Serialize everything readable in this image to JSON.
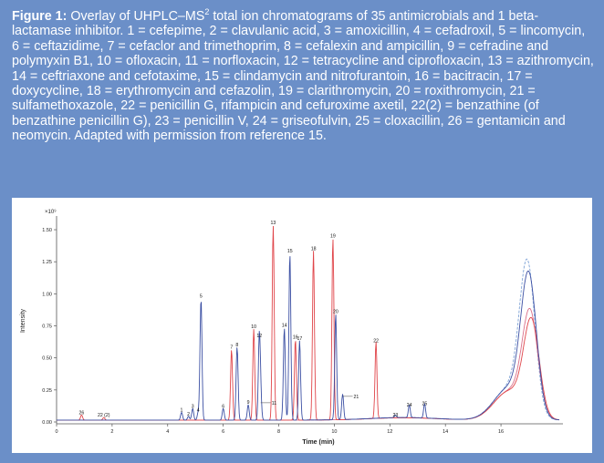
{
  "caption": {
    "label": "Figure 1:",
    "text_before_sup": " Overlay of UHPLC–MS",
    "superscript": "2",
    "text_after_sup": " total ion chromatograms of 35 antimicrobials and 1 beta-lactamase inhibitor. 1 = cefepime, 2 = clavulanic acid, 3 = amoxicillin, 4 = cefadroxil, 5 = lincomycin, 6 = ceftazidime, 7 = cefaclor and trimethoprim, 8 = cefalexin and ampicillin, 9 = cefradine and polymyxin B1, 10 = ofloxacin, 11 = norfloxacin, 12 = tetracycline and ciprofloxacin, 13 = azithromycin, 14 = ceftriaxone and cefotaxime, 15 = clindamycin and nitrofurantoin, 16 = bacitracin, 17 = doxycycline, 18 = erythromycin and cefazolin, 19 = clarithromycin, 20 = roxithromycin, 21 = sulfamethoxazole, 22 = penicillin G, rifampicin and cefuroxime axetil, 22(2) = benzathine (of benzathine penicillin G), 23 = penicillin V, 24 = griseofulvin, 25 = cloxacillin, 26 = gentamicin and neomycin. Adapted with permission from reference 15."
  },
  "colors": {
    "panel_bg": "#6b8fc8",
    "red": "#e0454a",
    "blue": "#3b4fa3",
    "lightblue": "#7fa3d6",
    "pink": "#d9708a"
  },
  "chart_data": {
    "type": "line",
    "xlabel": "Time (min)",
    "ylabel": "Intensity",
    "y_multiplier_label": "×10⁹",
    "xlim": [
      0,
      18.1
    ],
    "ylim": [
      0,
      1.55
    ],
    "x_ticks": [
      "0",
      "2",
      "4",
      "6",
      "8",
      "10",
      "12",
      "14",
      "16"
    ],
    "y_ticks": [
      "0.00",
      "0.25",
      "0.50",
      "0.75",
      "1.00",
      "1.25",
      "1.50"
    ],
    "x_tick_values": [
      0,
      2,
      4,
      6,
      8,
      10,
      12,
      14,
      16
    ],
    "y_tick_values": [
      0,
      0.25,
      0.5,
      0.75,
      1.0,
      1.25,
      1.5
    ],
    "peaks": [
      {
        "label": "26",
        "x": 0.9,
        "y": 0.04,
        "color": "red"
      },
      {
        "label": "22 (2)",
        "x": 1.7,
        "y": 0.02,
        "color": "red"
      },
      {
        "label": "1",
        "x": 4.5,
        "y": 0.06,
        "color": "blue"
      },
      {
        "label": "2",
        "x": 4.75,
        "y": 0.03,
        "color": "blue"
      },
      {
        "label": "3",
        "x": 4.9,
        "y": 0.09,
        "color": "blue"
      },
      {
        "label": "4",
        "x": 5.1,
        "y": 0.06,
        "color": "blue"
      },
      {
        "label": "5",
        "x": 5.2,
        "y": 0.95,
        "color": "blue"
      },
      {
        "label": "6",
        "x": 6.0,
        "y": 0.09,
        "color": "blue"
      },
      {
        "label": "7",
        "x": 6.3,
        "y": 0.55,
        "color": "red"
      },
      {
        "label": "8",
        "x": 6.5,
        "y": 0.57,
        "color": "blue"
      },
      {
        "label": "9",
        "x": 6.9,
        "y": 0.12,
        "color": "blue"
      },
      {
        "label": "10",
        "x": 7.1,
        "y": 0.71,
        "color": "red"
      },
      {
        "label": "11",
        "x": 7.35,
        "y": 0.15,
        "color": "blue"
      },
      {
        "label": "12",
        "x": 7.3,
        "y": 0.64,
        "color": "blue"
      },
      {
        "label": "13",
        "x": 7.8,
        "y": 1.52,
        "color": "red"
      },
      {
        "label": "14",
        "x": 8.2,
        "y": 0.72,
        "color": "blue"
      },
      {
        "label": "15",
        "x": 8.4,
        "y": 1.3,
        "color": "blue"
      },
      {
        "label": "16",
        "x": 8.6,
        "y": 0.63,
        "color": "red"
      },
      {
        "label": "17",
        "x": 8.75,
        "y": 0.62,
        "color": "blue"
      },
      {
        "label": "18",
        "x": 9.25,
        "y": 1.32,
        "color": "red"
      },
      {
        "label": "19",
        "x": 9.95,
        "y": 1.42,
        "color": "red"
      },
      {
        "label": "20",
        "x": 10.05,
        "y": 0.83,
        "color": "blue"
      },
      {
        "label": "21",
        "x": 10.3,
        "y": 0.2,
        "color": "blue"
      },
      {
        "label": "22",
        "x": 11.5,
        "y": 0.6,
        "color": "red"
      },
      {
        "label": "23",
        "x": 12.2,
        "y": 0.02,
        "color": "blue"
      },
      {
        "label": "24",
        "x": 12.7,
        "y": 0.1,
        "color": "blue"
      },
      {
        "label": "25",
        "x": 13.25,
        "y": 0.11,
        "color": "blue"
      }
    ],
    "background_features": [
      {
        "x": 16.95,
        "y": 1.13,
        "color": "lightblue"
      },
      {
        "x": 17.0,
        "y": 1.05,
        "color": "blue"
      },
      {
        "x": 17.05,
        "y": 0.78,
        "color": "pink"
      },
      {
        "x": 17.1,
        "y": 0.72,
        "color": "red"
      }
    ]
  }
}
